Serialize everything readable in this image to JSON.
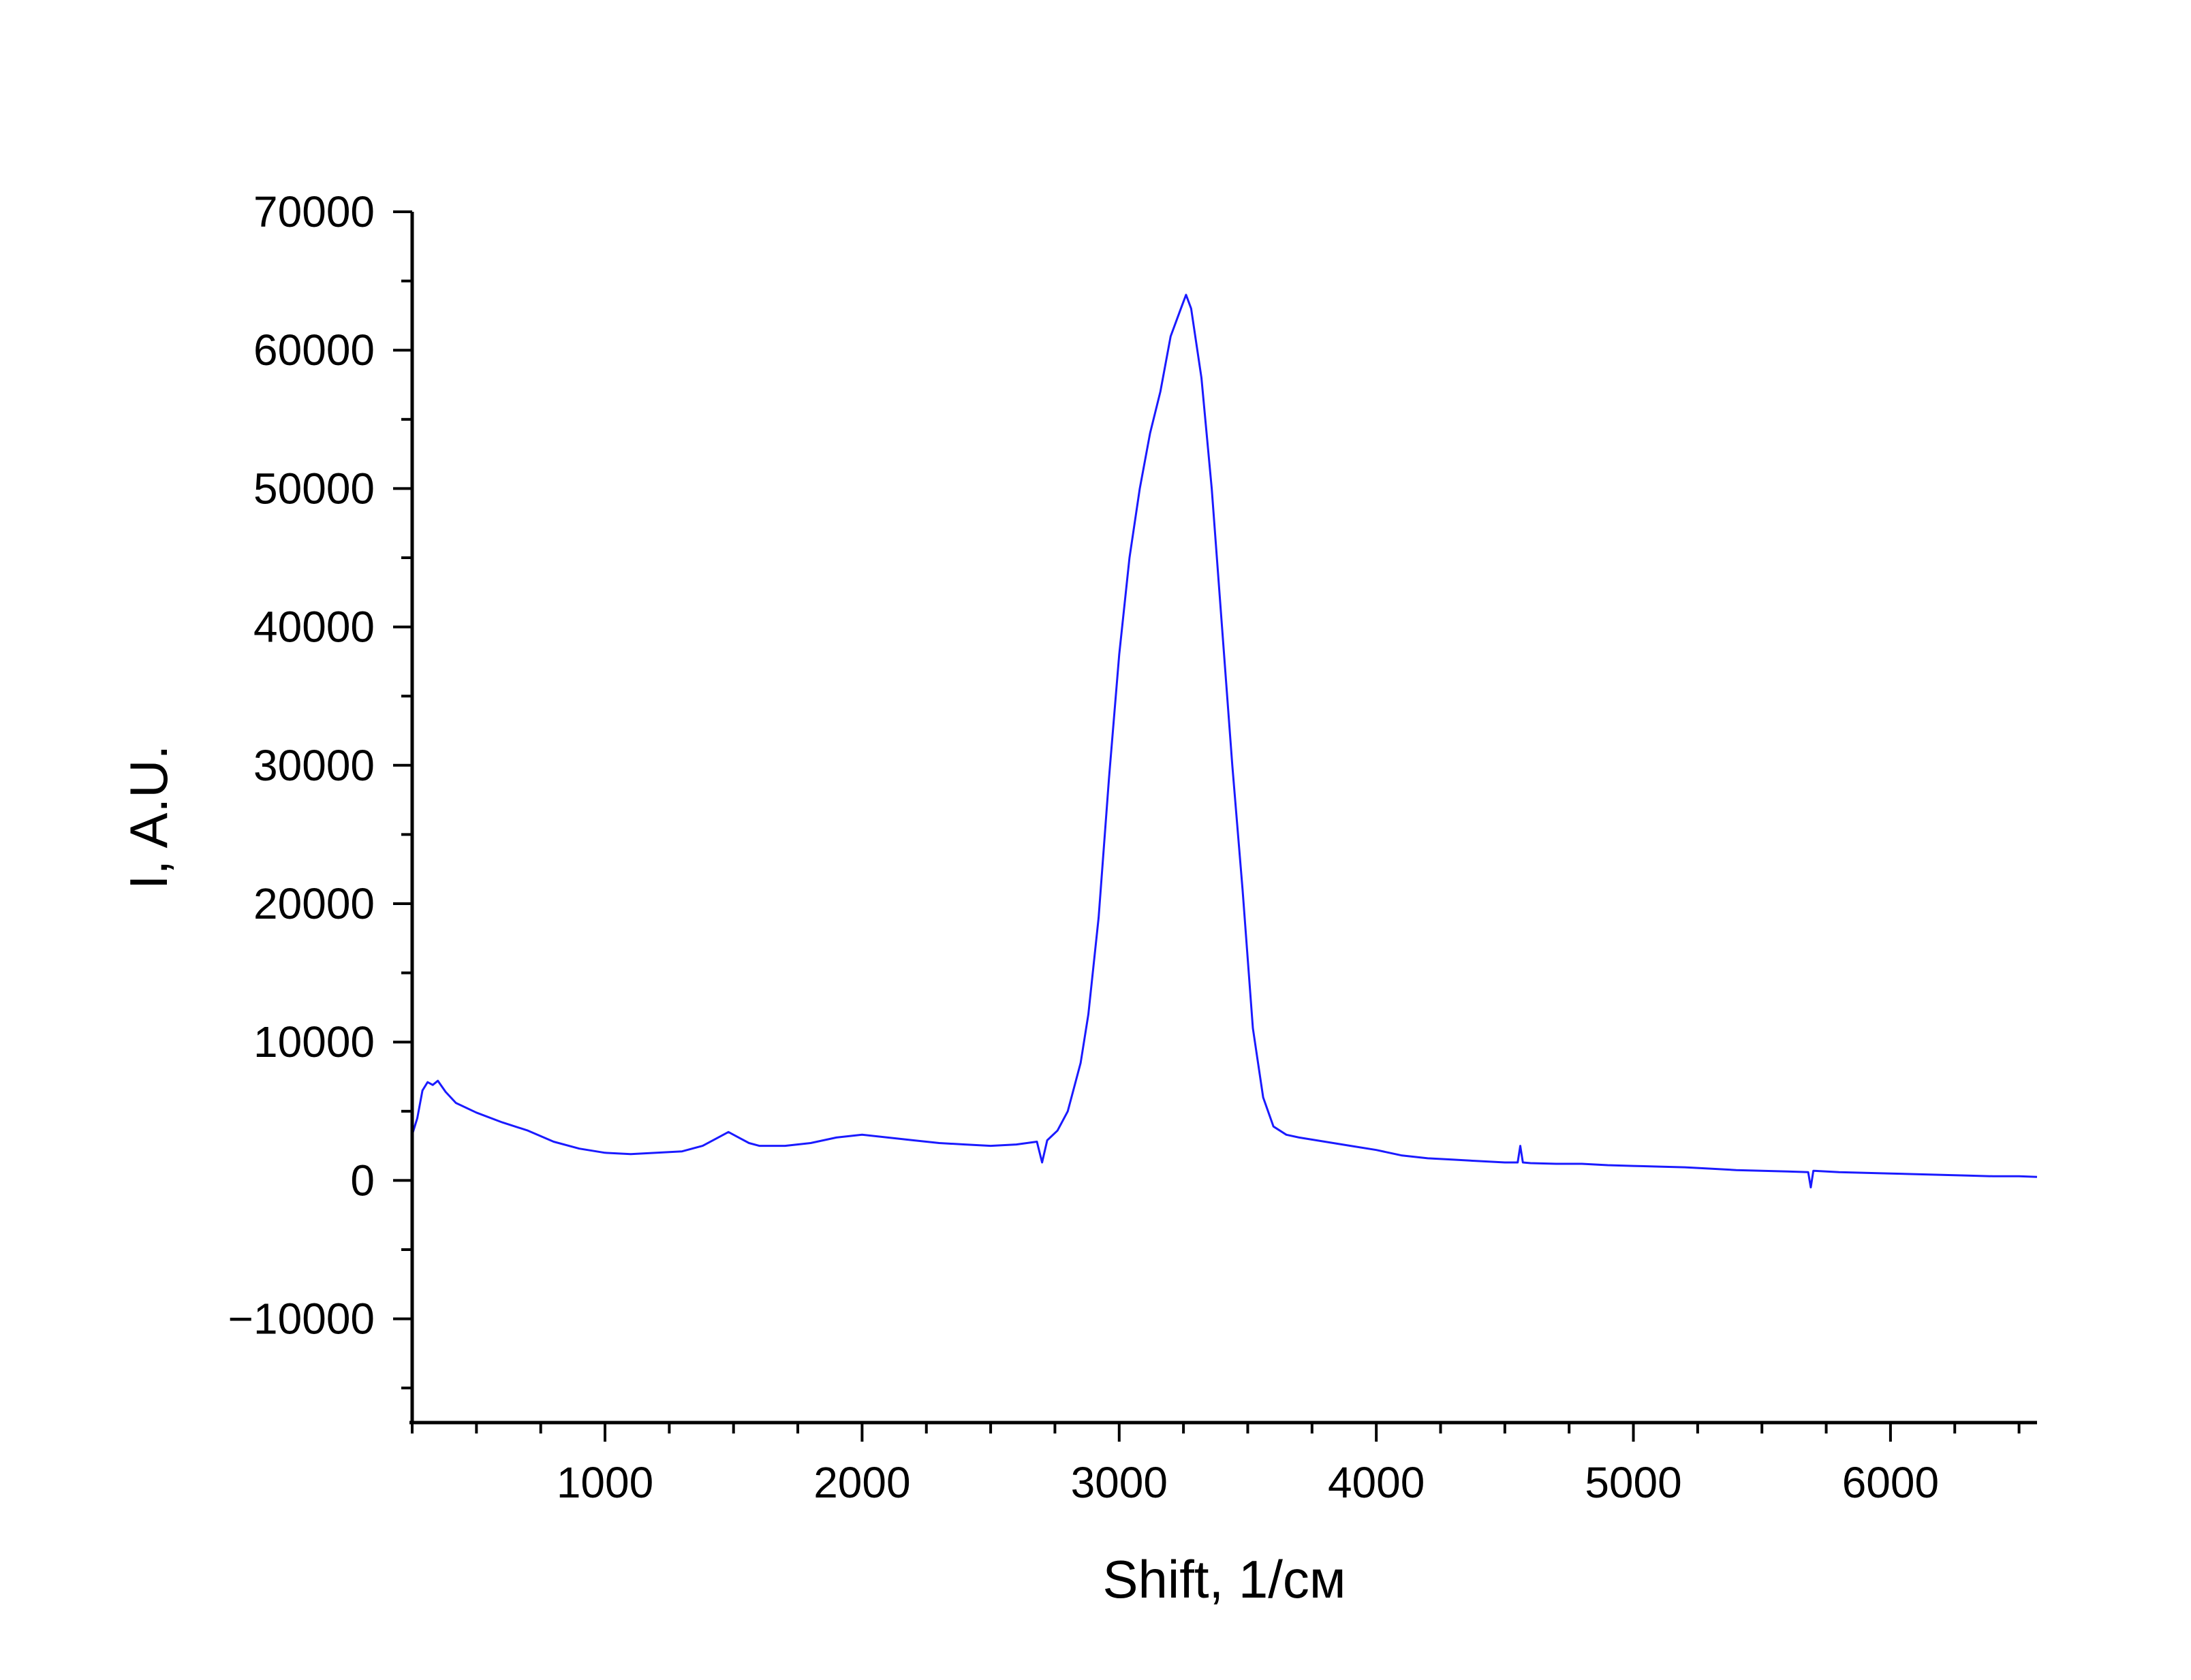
{
  "chart_data": {
    "type": "line",
    "title": "",
    "xlabel": "Shift, 1/см",
    "ylabel": "I, A.U.",
    "xlim": [
      250,
      6570
    ],
    "ylim": [
      -17500,
      70000
    ],
    "x_ticks": [
      1000,
      2000,
      3000,
      4000,
      5000,
      6000
    ],
    "x_tick_labels": [
      "1000",
      "2000",
      "3000",
      "4000",
      "5000",
      "6000"
    ],
    "x_minor_step": 250,
    "y_ticks": [
      -10000,
      0,
      10000,
      20000,
      30000,
      40000,
      50000,
      60000,
      70000
    ],
    "y_tick_labels": [
      "−10000",
      "0",
      "10000",
      "20000",
      "30000",
      "40000",
      "50000",
      "60000",
      "70000"
    ],
    "y_minor_step": 5000,
    "grid": false,
    "legend": "none",
    "series": [
      {
        "color": "#1a1aff",
        "points": [
          [
            250,
            3300
          ],
          [
            270,
            4500
          ],
          [
            290,
            6500
          ],
          [
            310,
            7100
          ],
          [
            330,
            6900
          ],
          [
            350,
            7200
          ],
          [
            380,
            6400
          ],
          [
            420,
            5600
          ],
          [
            500,
            4900
          ],
          [
            600,
            4200
          ],
          [
            700,
            3600
          ],
          [
            800,
            2800
          ],
          [
            900,
            2300
          ],
          [
            1000,
            2000
          ],
          [
            1100,
            1900
          ],
          [
            1200,
            2000
          ],
          [
            1300,
            2100
          ],
          [
            1380,
            2500
          ],
          [
            1440,
            3100
          ],
          [
            1480,
            3500
          ],
          [
            1520,
            3100
          ],
          [
            1560,
            2700
          ],
          [
            1600,
            2500
          ],
          [
            1700,
            2500
          ],
          [
            1800,
            2700
          ],
          [
            1900,
            3100
          ],
          [
            2000,
            3300
          ],
          [
            2100,
            3100
          ],
          [
            2200,
            2900
          ],
          [
            2300,
            2700
          ],
          [
            2400,
            2600
          ],
          [
            2500,
            2500
          ],
          [
            2600,
            2600
          ],
          [
            2680,
            2800
          ],
          [
            2700,
            1300
          ],
          [
            2720,
            2900
          ],
          [
            2760,
            3600
          ],
          [
            2800,
            5000
          ],
          [
            2850,
            8500
          ],
          [
            2880,
            12000
          ],
          [
            2920,
            19000
          ],
          [
            2960,
            29000
          ],
          [
            3000,
            38000
          ],
          [
            3040,
            45000
          ],
          [
            3080,
            50000
          ],
          [
            3120,
            54000
          ],
          [
            3160,
            57000
          ],
          [
            3200,
            61000
          ],
          [
            3240,
            63000
          ],
          [
            3260,
            64000
          ],
          [
            3280,
            63000
          ],
          [
            3320,
            58000
          ],
          [
            3360,
            50000
          ],
          [
            3400,
            40000
          ],
          [
            3440,
            30000
          ],
          [
            3480,
            21000
          ],
          [
            3520,
            11000
          ],
          [
            3560,
            6000
          ],
          [
            3600,
            3900
          ],
          [
            3650,
            3300
          ],
          [
            3700,
            3100
          ],
          [
            3800,
            2800
          ],
          [
            3900,
            2500
          ],
          [
            4000,
            2200
          ],
          [
            4100,
            1800
          ],
          [
            4200,
            1600
          ],
          [
            4300,
            1500
          ],
          [
            4400,
            1400
          ],
          [
            4500,
            1300
          ],
          [
            4550,
            1300
          ],
          [
            4560,
            2500
          ],
          [
            4570,
            1300
          ],
          [
            4600,
            1250
          ],
          [
            4700,
            1200
          ],
          [
            4800,
            1200
          ],
          [
            4900,
            1100
          ],
          [
            5000,
            1050
          ],
          [
            5100,
            1000
          ],
          [
            5200,
            950
          ],
          [
            5300,
            850
          ],
          [
            5400,
            750
          ],
          [
            5500,
            700
          ],
          [
            5600,
            650
          ],
          [
            5680,
            600
          ],
          [
            5690,
            -500
          ],
          [
            5700,
            700
          ],
          [
            5800,
            600
          ],
          [
            5900,
            550
          ],
          [
            6000,
            500
          ],
          [
            6100,
            450
          ],
          [
            6200,
            400
          ],
          [
            6300,
            350
          ],
          [
            6400,
            300
          ],
          [
            6500,
            300
          ],
          [
            6570,
            250
          ]
        ]
      }
    ]
  }
}
